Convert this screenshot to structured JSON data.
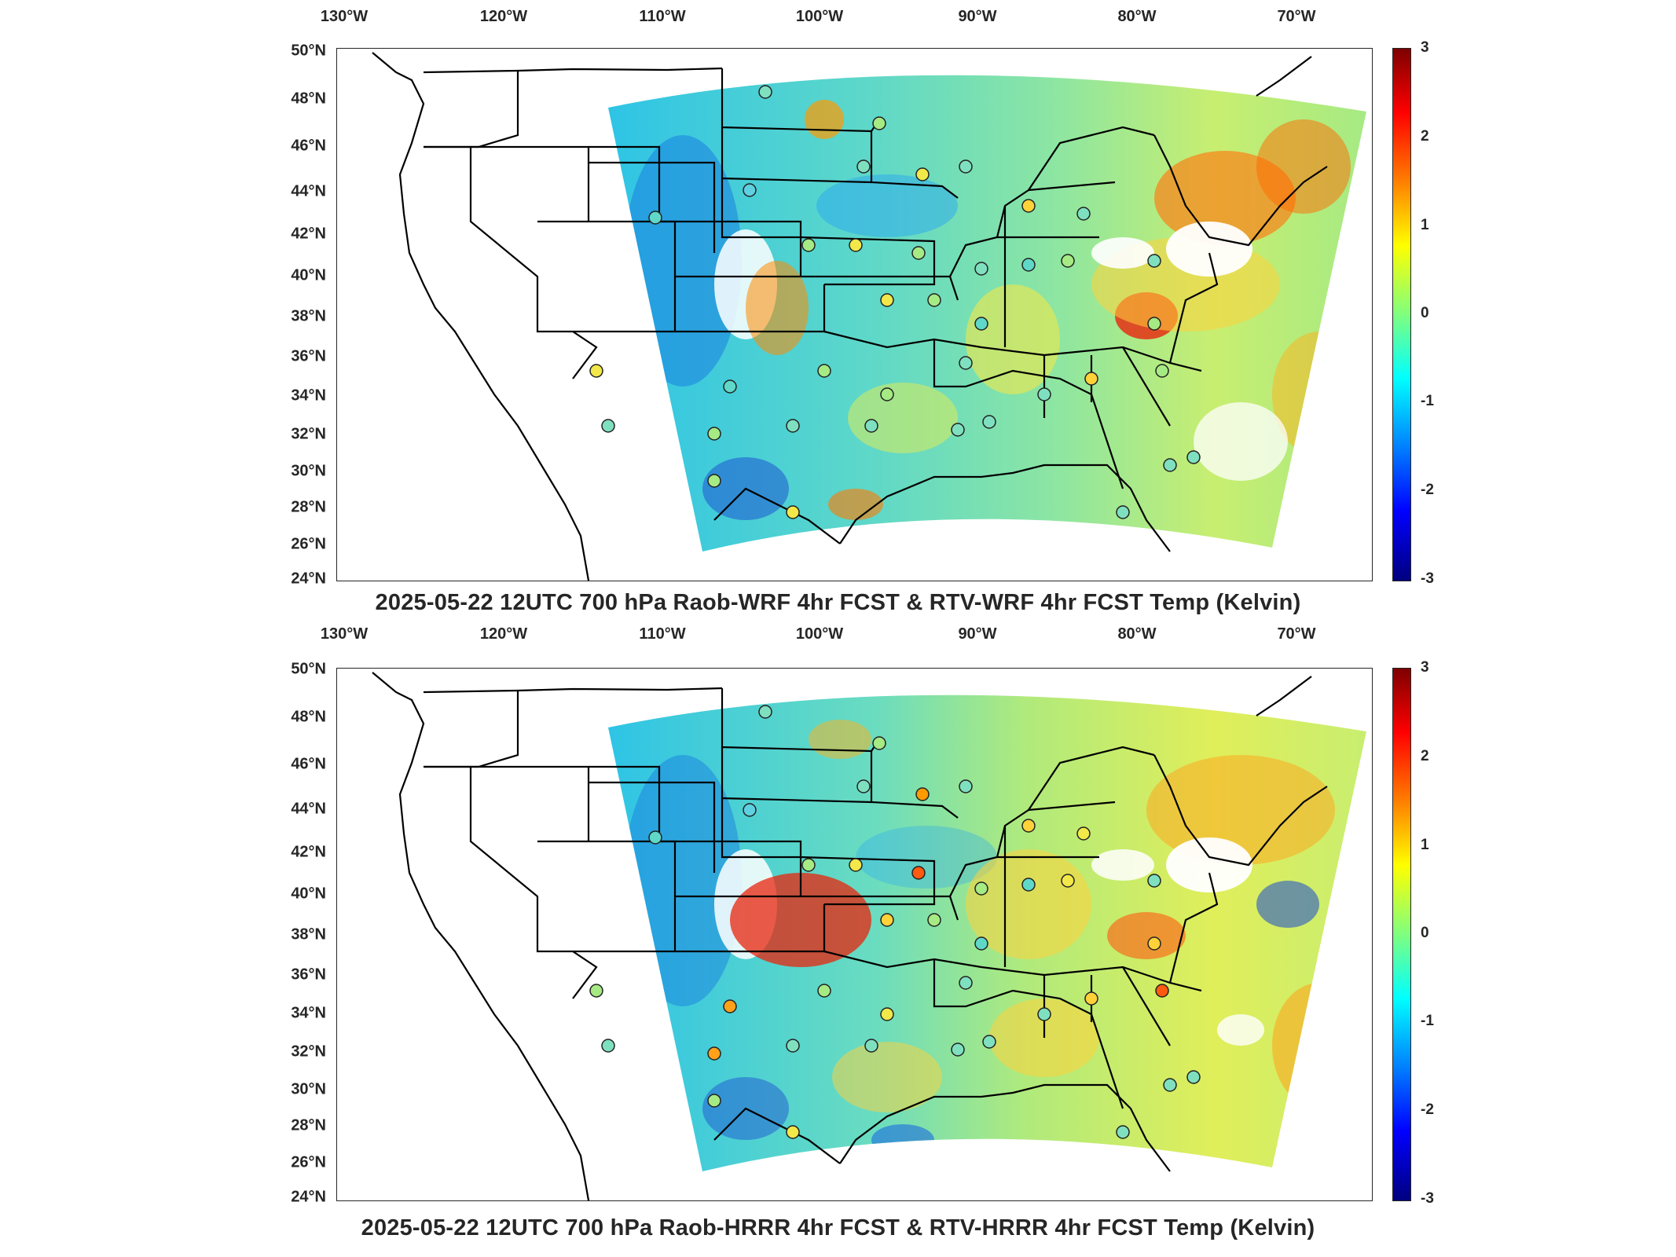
{
  "panels": [
    {
      "title": "2025-05-22 12UTC 700 hPa Raob-WRF 4hr FCST & RTV-WRF 4hr FCST Temp (Kelvin)",
      "lon_labels": [
        "130°W",
        "120°W",
        "110°W",
        "100°W",
        "90°W",
        "80°W",
        "70°W"
      ],
      "lat_labels": [
        "50°N",
        "48°N",
        "46°N",
        "44°N",
        "42°N",
        "40°N",
        "38°N",
        "36°N",
        "34°N",
        "32°N",
        "30°N",
        "28°N",
        "26°N",
        "24°N"
      ],
      "colorbar_ticks": [
        "3",
        "2",
        "1",
        "0",
        "-1",
        "-2",
        "-3"
      ],
      "colorbar_range": [
        -3,
        3
      ],
      "colormap": "jet"
    },
    {
      "title": "2025-05-22 12UTC 700 hPa Raob-HRRR 4hr FCST & RTV-HRRR 4hr FCST Temp (Kelvin)",
      "lon_labels": [
        "130°W",
        "120°W",
        "110°W",
        "100°W",
        "90°W",
        "80°W",
        "70°W"
      ],
      "lat_labels": [
        "50°N",
        "48°N",
        "46°N",
        "44°N",
        "42°N",
        "40°N",
        "38°N",
        "36°N",
        "34°N",
        "32°N",
        "30°N",
        "28°N",
        "26°N",
        "24°N"
      ],
      "colorbar_ticks": [
        "3",
        "2",
        "1",
        "0",
        "-1",
        "-2",
        "-3"
      ],
      "colorbar_range": [
        -3,
        3
      ],
      "colormap": "jet"
    }
  ],
  "colors": {
    "background_field": "#3fd9d0",
    "warm_anomaly": "#ff8000",
    "cool_anomaly": "#00a0ff",
    "outline": "#000000"
  }
}
